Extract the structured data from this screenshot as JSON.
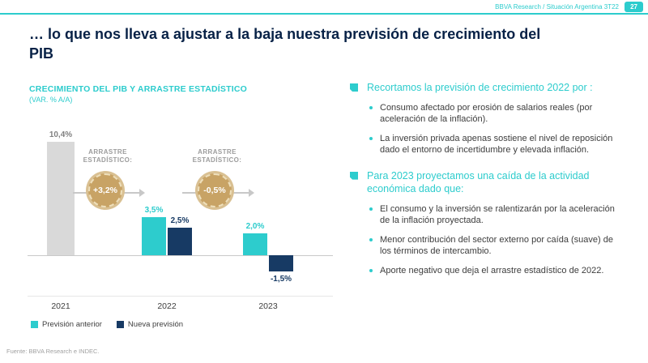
{
  "header": {
    "breadcrumb": "BBVA Research / Situación Argentina 3T22",
    "page_number": "27"
  },
  "title": "… lo que nos lleva a ajustar a la baja nuestra previsión de crecimiento del\nPIB",
  "colors": {
    "teal": "#2dcccd",
    "navy": "#173a64",
    "title_navy": "#072146",
    "gold": "#c8a365",
    "gray_bar": "#d9d9d9"
  },
  "chart_data": {
    "type": "bar",
    "title": "CRECIMIENTO DEL PIB Y ARRASTRE ESTADÍSTICO",
    "subtitle": "(VAR. % A/A)",
    "unit": "%",
    "categories": [
      "2021",
      "2022",
      "2023"
    ],
    "ylim": [
      -2,
      11
    ],
    "grid": false,
    "legend_position": "bottom",
    "bars": [
      {
        "category": "2021",
        "series": "PIB 2021",
        "value": 10.4,
        "label": "10,4%",
        "color": "#d9d9d9",
        "label_color": "#808080"
      },
      {
        "category": "2022",
        "series": "Previsión anterior",
        "value": 3.5,
        "label": "3,5%",
        "color": "#2dcccd",
        "label_color": "#2dcccd"
      },
      {
        "category": "2022",
        "series": "Nueva previsión",
        "value": 2.5,
        "label": "2,5%",
        "color": "#173a64",
        "label_color": "#173a64"
      },
      {
        "category": "2023",
        "series": "Previsión anterior",
        "value": 2.0,
        "label": "2,0%",
        "color": "#2dcccd",
        "label_color": "#2dcccd"
      },
      {
        "category": "2023",
        "series": "Nueva previsión",
        "value": -1.5,
        "label": "-1,5%",
        "color": "#173a64",
        "label_color": "#173a64"
      }
    ],
    "annotations": [
      {
        "label_lines": [
          "ARRASTRE",
          "ESTADÍSTICO:"
        ],
        "value": "+3,2%",
        "between": [
          "2021",
          "2022"
        ]
      },
      {
        "label_lines": [
          "ARRASTRE",
          "ESTADÍSTICO:"
        ],
        "value": "-0,5%",
        "between": [
          "2022",
          "2023"
        ]
      }
    ],
    "legend": [
      {
        "label": "Previsión anterior",
        "color": "#2dcccd"
      },
      {
        "label": "Nueva previsión",
        "color": "#173a64"
      }
    ]
  },
  "sections": [
    {
      "heading": "Recortamos la previsión de crecimiento 2022 por :",
      "bullets": [
        "Consumo afectado por erosión de salarios reales (por aceleración de la inflación).",
        "La inversión privada apenas sostiene el nivel de reposición dado el entorno de incertidumbre y elevada inflación."
      ]
    },
    {
      "heading": "Para 2023 proyectamos una caída de la actividad económica dado que:",
      "bullets": [
        "El consumo y la inversión se ralentizarán por la aceleración de la inflación proyectada.",
        "Menor contribución del sector externo por caída (suave) de los términos de intercambio.",
        "Aporte negativo que deja el arrastre estadístico de 2022."
      ]
    }
  ],
  "footer": "Fuente: BBVA Research e INDEC."
}
